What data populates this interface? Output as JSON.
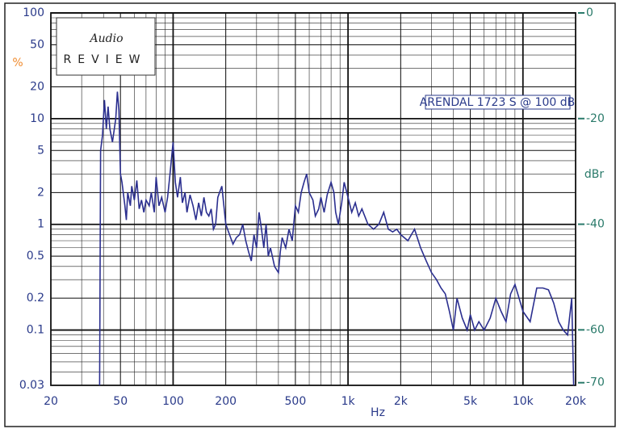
{
  "chart_data": {
    "type": "line",
    "xlabel": "Hz",
    "ylabel": "%",
    "y2label": "dBr",
    "annotation": "ARENDAL 1723 S @ 100 dB",
    "logo": {
      "title": "Audio",
      "subtitle": "REVIEW"
    },
    "xscale": "log",
    "yscale": "log",
    "grid": true,
    "minor_grid": true,
    "color": "#2b2f8f",
    "xlim": [
      20,
      20000
    ],
    "xticks": [
      20,
      50,
      100,
      200,
      500,
      {
        "value": 1000,
        "label": "1k"
      },
      {
        "value": 2000,
        "label": "2k"
      },
      {
        "value": 5000,
        "label": "5k"
      },
      {
        "value": 10000,
        "label": "10k"
      },
      {
        "value": 20000,
        "label": "20k"
      }
    ],
    "ylim": [
      0.03,
      100
    ],
    "yticks": [
      100,
      50,
      20,
      10,
      5,
      2,
      1,
      0.5,
      0.2,
      0.1,
      0.03
    ],
    "y2lim": [
      -70.5,
      0
    ],
    "y2ticks": [
      0,
      -20,
      -40,
      -60,
      -70
    ],
    "x": [
      38,
      38.5,
      39.5,
      40.5,
      41.5,
      42.5,
      43.5,
      45,
      47,
      48,
      49,
      50,
      51,
      53,
      54,
      55,
      57,
      58,
      60,
      62,
      64,
      66,
      68,
      70,
      73,
      75,
      78,
      80,
      83,
      86,
      90,
      93,
      96,
      100,
      103,
      106,
      110,
      113,
      117,
      120,
      125,
      130,
      135,
      140,
      145,
      150,
      155,
      160,
      165,
      170,
      175,
      180,
      190,
      200,
      210,
      220,
      230,
      240,
      250,
      260,
      270,
      280,
      290,
      300,
      310,
      320,
      330,
      340,
      350,
      360,
      380,
      400,
      410,
      420,
      440,
      460,
      480,
      500,
      520,
      540,
      560,
      580,
      600,
      630,
      650,
      680,
      700,
      730,
      760,
      800,
      830,
      850,
      880,
      920,
      950,
      1000,
      1050,
      1100,
      1150,
      1200,
      1300,
      1400,
      1500,
      1600,
      1700,
      1800,
      1900,
      2000,
      2200,
      2400,
      2600,
      2800,
      3000,
      3200,
      3400,
      3600,
      3800,
      4000,
      4200,
      4500,
      4800,
      5000,
      5300,
      5600,
      6000,
      6500,
      7000,
      7500,
      8000,
      8500,
      9000,
      9500,
      10000,
      11000,
      12000,
      13000,
      14000,
      15000,
      16000,
      17000,
      18000,
      19000,
      19500
    ],
    "values": [
      0.03,
      5,
      7,
      15,
      8,
      13,
      8,
      6,
      10,
      18,
      12,
      3,
      2.5,
      1.5,
      1.1,
      2,
      1.5,
      2.3,
      1.7,
      2.6,
      1.4,
      1.7,
      1.3,
      1.7,
      1.5,
      2.0,
      1.3,
      2.8,
      1.5,
      1.8,
      1.3,
      1.8,
      3.0,
      6,
      2.5,
      1.8,
      2.8,
      1.6,
      2.0,
      1.3,
      1.9,
      1.5,
      1.1,
      1.6,
      1.2,
      1.8,
      1.3,
      1.2,
      1.4,
      0.9,
      1.0,
      1.8,
      2.3,
      1.0,
      0.8,
      0.65,
      0.75,
      0.8,
      1.0,
      0.7,
      0.55,
      0.45,
      0.8,
      0.6,
      1.3,
      0.9,
      0.6,
      1.0,
      0.5,
      0.6,
      0.4,
      0.35,
      0.55,
      0.75,
      0.6,
      0.9,
      0.7,
      1.5,
      1.3,
      2.0,
      2.5,
      3.0,
      2.0,
      1.7,
      1.2,
      1.4,
      1.8,
      1.3,
      1.9,
      2.5,
      2.0,
      1.3,
      1.0,
      1.6,
      2.5,
      1.8,
      1.3,
      1.6,
      1.2,
      1.4,
      1.0,
      0.9,
      1.0,
      1.3,
      0.9,
      0.85,
      0.9,
      0.8,
      0.7,
      0.9,
      0.6,
      0.45,
      0.35,
      0.3,
      0.25,
      0.22,
      0.15,
      0.1,
      0.2,
      0.13,
      0.1,
      0.14,
      0.1,
      0.12,
      0.1,
      0.13,
      0.2,
      0.15,
      0.12,
      0.22,
      0.27,
      0.2,
      0.15,
      0.12,
      0.25,
      0.25,
      0.24,
      0.18,
      0.12,
      0.1,
      0.09,
      0.2,
      0.03
    ]
  }
}
